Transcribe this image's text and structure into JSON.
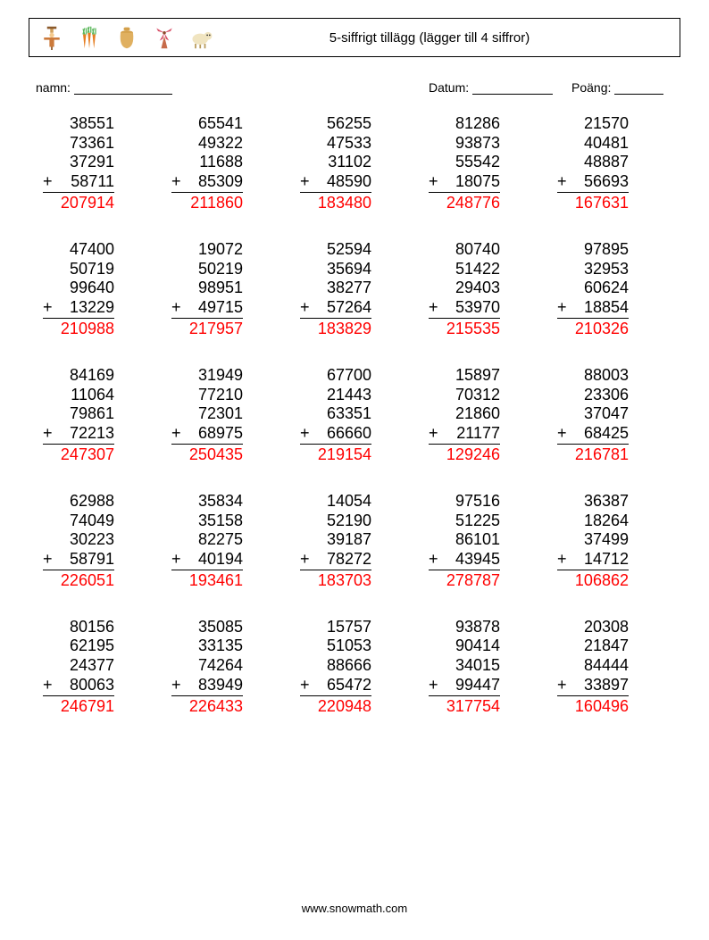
{
  "header": {
    "title": "5-siffrigt tillägg (lägger till 4 siffror)",
    "border_color": "#000000"
  },
  "labels": {
    "name": "namn:",
    "date": "Datum:",
    "score": "Poäng:"
  },
  "style": {
    "answer_color": "#ff0000",
    "text_color": "#000000",
    "font_size": 18,
    "background": "#ffffff",
    "columns": 5,
    "rows": 5,
    "operator": "+"
  },
  "problems": [
    {
      "operands": [
        "38551",
        "73361",
        "37291",
        "58711"
      ],
      "answer": "207914"
    },
    {
      "operands": [
        "65541",
        "49322",
        "11688",
        "85309"
      ],
      "answer": "211860"
    },
    {
      "operands": [
        "56255",
        "47533",
        "31102",
        "48590"
      ],
      "answer": "183480"
    },
    {
      "operands": [
        "81286",
        "93873",
        "55542",
        "18075"
      ],
      "answer": "248776"
    },
    {
      "operands": [
        "21570",
        "40481",
        "48887",
        "56693"
      ],
      "answer": "167631"
    },
    {
      "operands": [
        "47400",
        "50719",
        "99640",
        "13229"
      ],
      "answer": "210988"
    },
    {
      "operands": [
        "19072",
        "50219",
        "98951",
        "49715"
      ],
      "answer": "217957"
    },
    {
      "operands": [
        "52594",
        "35694",
        "38277",
        "57264"
      ],
      "answer": "183829"
    },
    {
      "operands": [
        "80740",
        "51422",
        "29403",
        "53970"
      ],
      "answer": "215535"
    },
    {
      "operands": [
        "97895",
        "32953",
        "60624",
        "18854"
      ],
      "answer": "210326"
    },
    {
      "operands": [
        "84169",
        "11064",
        "79861",
        "72213"
      ],
      "answer": "247307"
    },
    {
      "operands": [
        "31949",
        "77210",
        "72301",
        "68975"
      ],
      "answer": "250435"
    },
    {
      "operands": [
        "67700",
        "21443",
        "63351",
        "66660"
      ],
      "answer": "219154"
    },
    {
      "operands": [
        "15897",
        "70312",
        "21860",
        "21177"
      ],
      "answer": "129246"
    },
    {
      "operands": [
        "88003",
        "23306",
        "37047",
        "68425"
      ],
      "answer": "216781"
    },
    {
      "operands": [
        "62988",
        "74049",
        "30223",
        "58791"
      ],
      "answer": "226051"
    },
    {
      "operands": [
        "35834",
        "35158",
        "82275",
        "40194"
      ],
      "answer": "193461"
    },
    {
      "operands": [
        "14054",
        "52190",
        "39187",
        "78272"
      ],
      "answer": "183703"
    },
    {
      "operands": [
        "97516",
        "51225",
        "86101",
        "43945"
      ],
      "answer": "278787"
    },
    {
      "operands": [
        "36387",
        "18264",
        "37499",
        "14712"
      ],
      "answer": "106862"
    },
    {
      "operands": [
        "80156",
        "62195",
        "24377",
        "80063"
      ],
      "answer": "246791"
    },
    {
      "operands": [
        "35085",
        "33135",
        "74264",
        "83949"
      ],
      "answer": "226433"
    },
    {
      "operands": [
        "15757",
        "51053",
        "88666",
        "65472"
      ],
      "answer": "220948"
    },
    {
      "operands": [
        "93878",
        "90414",
        "34015",
        "99447"
      ],
      "answer": "317754"
    },
    {
      "operands": [
        "20308",
        "21847",
        "84444",
        "33897"
      ],
      "answer": "160496"
    }
  ],
  "footer": {
    "text": "www.snowmath.com"
  }
}
